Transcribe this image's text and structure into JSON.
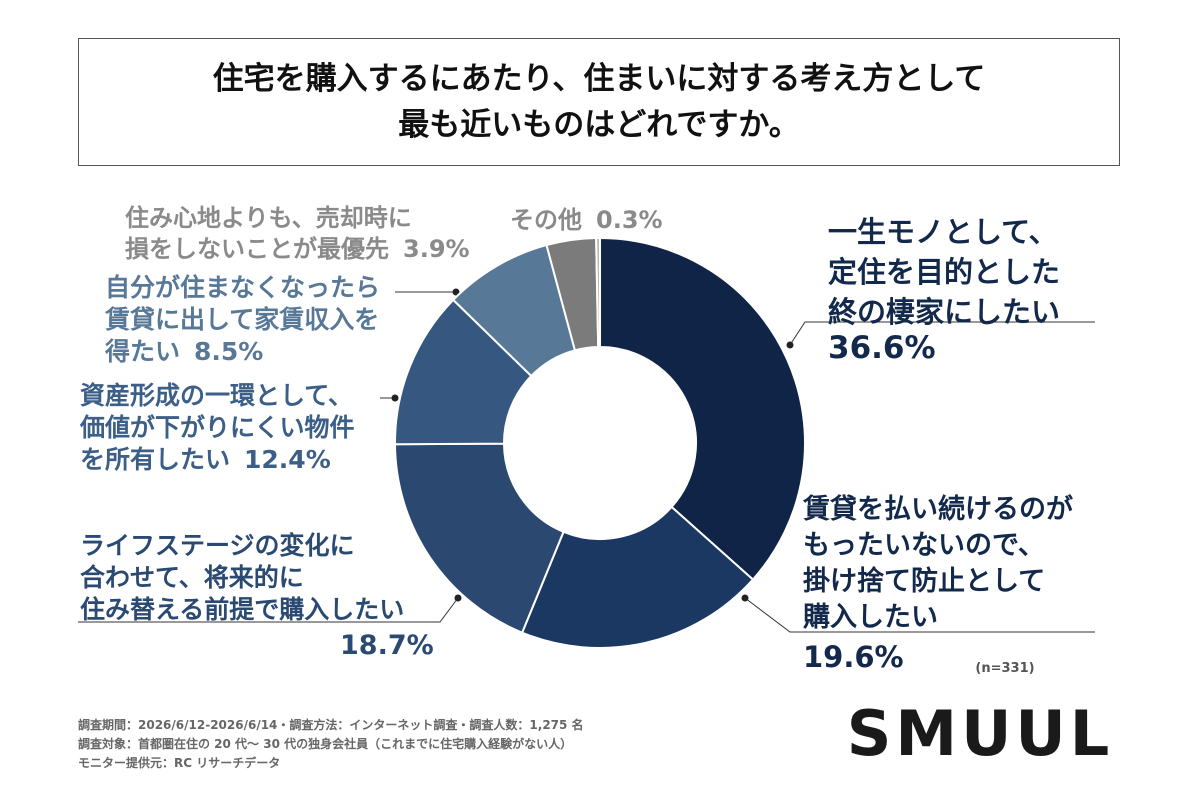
{
  "chart_data": {
    "type": "pie",
    "title": "住宅を購入するにあたり、住まいに対する考え方として\n最も近いものはどれですか。",
    "categories": [
      "一生モノとして、\n定住を目的とした\n終の棲家にしたい",
      "賃貸を払い続けるのが\nもったいないので、\n掛け捨て防止として\n購入したい",
      "ライフステージの変化に\n合わせて、将来的に\n住み替える前提で購入したい",
      "資産形成の一環として、\n価値が下がりにくい物件\nを所有したい",
      "自分が住まなくなったら\n賃貸に出して家賃収入を\n得たい",
      "住み心地よりも、売却時に\n損をしないことが最優先",
      "その他"
    ],
    "values": [
      36.6,
      19.6,
      18.7,
      12.4,
      8.5,
      3.9,
      0.3
    ],
    "value_labels": [
      "36.6%",
      "19.6%",
      "18.7%",
      "12.4%",
      "8.5%",
      "3.9%",
      "0.3%"
    ],
    "colors": [
      "#0f2447",
      "#1b3862",
      "#2a4870",
      "#36577f",
      "#587898",
      "#7b7b7b",
      "#b8b8b8"
    ],
    "note": "(n=331)",
    "footnotes": [
      "調査期間：2026/6/12-2026/6/14・調査方法：インターネット調査・調査人数：1,275 名",
      "調査対象：首都圏在住の 20 代〜 30 代の独身会社員（これまでに住宅購入経験がない人）",
      "モニター提供元：RC リサーチデータ"
    ],
    "logo": "SMUUL"
  }
}
